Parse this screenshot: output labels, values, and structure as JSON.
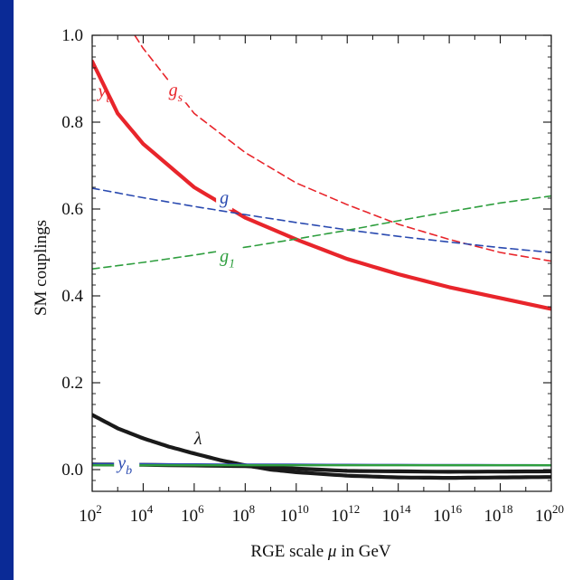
{
  "chart_data": {
    "type": "line",
    "title": "",
    "xlabel": {
      "main": "RGE scale ",
      "mu": "μ",
      "unit": " in GeV"
    },
    "ylabel": "SM couplings",
    "xscale": "log10",
    "xlim": [
      100,
      1e+20
    ],
    "ylim": [
      -0.05,
      1.0
    ],
    "grid": false,
    "x_ticks": [
      {
        "base": "10",
        "exp": "2"
      },
      {
        "base": "10",
        "exp": "4"
      },
      {
        "base": "10",
        "exp": "6"
      },
      {
        "base": "10",
        "exp": "8"
      },
      {
        "base": "10",
        "exp": "10"
      },
      {
        "base": "10",
        "exp": "12"
      },
      {
        "base": "10",
        "exp": "14"
      },
      {
        "base": "10",
        "exp": "16"
      },
      {
        "base": "10",
        "exp": "18"
      },
      {
        "base": "10",
        "exp": "20"
      }
    ],
    "y_ticks": [
      "0.0",
      "0.2",
      "0.4",
      "0.6",
      "0.8",
      "1.0"
    ],
    "series": [
      {
        "label": {
          "main": "g",
          "sub": "s"
        },
        "color": "#e8252b",
        "style": "dashed",
        "width": "thin",
        "x": [
          100,
          1000.0,
          10000.0,
          1000000.0,
          100000000.0,
          10000000000.0,
          1000000000000.0,
          100000000000000.0,
          1e+16,
          1e+18,
          1e+20
        ],
        "y": [
          1.22,
          1.06,
          0.97,
          0.82,
          0.73,
          0.66,
          0.61,
          0.565,
          0.53,
          0.5,
          0.48
        ]
      },
      {
        "label": {
          "main": "y",
          "sub": "t"
        },
        "color": "#e8252b",
        "style": "solid",
        "width": "thick",
        "x": [
          100,
          1000.0,
          10000.0,
          1000000.0,
          100000000.0,
          10000000000.0,
          1000000000000.0,
          100000000000000.0,
          1e+16,
          1e+18,
          1e+20
        ],
        "y": [
          0.94,
          0.82,
          0.75,
          0.65,
          0.58,
          0.53,
          0.485,
          0.45,
          0.42,
          0.395,
          0.37
        ]
      },
      {
        "label": {
          "main": "g",
          "sub": ""
        },
        "color": "#2a4ab0",
        "style": "dashed",
        "width": "thin",
        "x": [
          100,
          10000.0,
          1000000.0,
          100000000.0,
          10000000000.0,
          1000000000000.0,
          100000000000000.0,
          1e+16,
          1e+18,
          1e+20
        ],
        "y": [
          0.648,
          0.626,
          0.606,
          0.587,
          0.569,
          0.552,
          0.537,
          0.524,
          0.511,
          0.5
        ]
      },
      {
        "label": {
          "main": "g",
          "sub": "1"
        },
        "color": "#2e9e3e",
        "style": "dashed",
        "width": "thin",
        "x": [
          100,
          10000.0,
          1000000.0,
          100000000.0,
          10000000000.0,
          1000000000000.0,
          100000000000000.0,
          1e+16,
          1e+18,
          1e+20
        ],
        "y": [
          0.462,
          0.477,
          0.494,
          0.512,
          0.531,
          0.551,
          0.573,
          0.594,
          0.614,
          0.63
        ]
      },
      {
        "label": {
          "main": "λ",
          "sub": ""
        },
        "color": "#1a1a1a",
        "style": "solid",
        "width": "thick",
        "x": [
          100,
          1000.0,
          10000.0,
          100000.0,
          1000000.0,
          10000000.0,
          100000000.0,
          1000000000.0,
          10000000000.0,
          1000000000000.0,
          100000000000000.0,
          1e+16,
          1e+18,
          1e+20
        ],
        "y": [
          0.126,
          0.095,
          0.072,
          0.053,
          0.037,
          0.022,
          0.01,
          0.0,
          -0.006,
          -0.014,
          -0.018,
          -0.019,
          -0.018,
          -0.017
        ]
      },
      {
        "label": {
          "main": "",
          "sub": ""
        },
        "color": "#1a1a1a",
        "style": "solid",
        "width": "thick",
        "x": [
          100,
          10000.0,
          100000000.0,
          1000000000000.0,
          1e+16,
          1e+20
        ],
        "y": [
          0.012,
          0.011,
          0.008,
          -0.003,
          -0.005,
          -0.004
        ]
      },
      {
        "label": {
          "main": "y",
          "sub": "b"
        },
        "color": "#2a4ab0",
        "style": "solid",
        "width": "medium",
        "x": [
          100,
          1000000.0,
          1000000000000.0,
          1e+20
        ],
        "y": [
          0.013,
          0.012,
          0.011,
          0.01
        ]
      },
      {
        "label": {
          "main": "",
          "sub": ""
        },
        "color": "#2e9e3e",
        "style": "solid",
        "width": "medium",
        "x": [
          100,
          1000000.0,
          1000000000000.0,
          1e+20
        ],
        "y": [
          0.01,
          0.01,
          0.01,
          0.01
        ]
      }
    ]
  }
}
